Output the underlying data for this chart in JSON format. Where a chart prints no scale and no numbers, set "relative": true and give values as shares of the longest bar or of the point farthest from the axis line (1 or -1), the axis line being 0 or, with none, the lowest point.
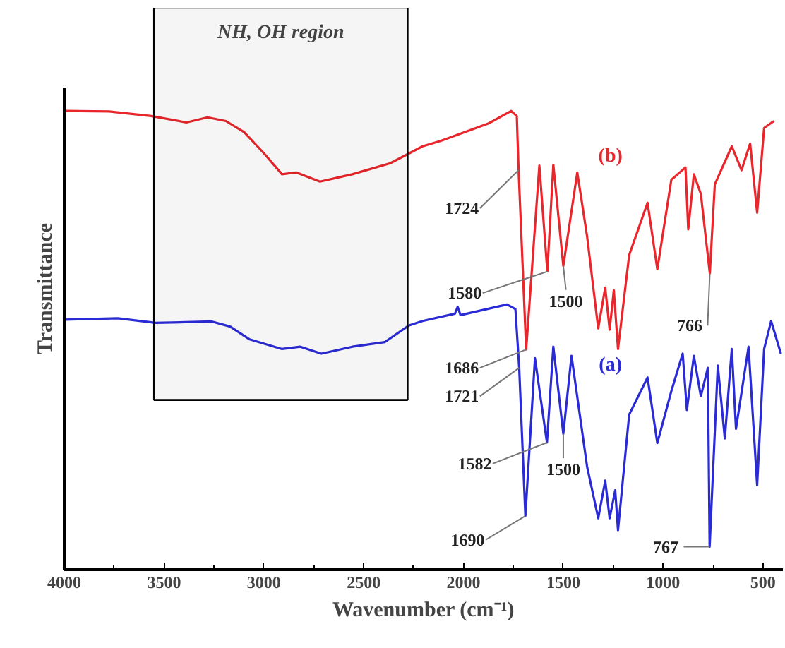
{
  "chart_data": {
    "type": "line",
    "relative": true,
    "xlabel": "Wavenumber (cm⁻¹)",
    "ylabel": "Transmittance",
    "xlim": [
      4000,
      400
    ],
    "xticks": [
      4000,
      {
        "value": 3750,
        "label": null
      },
      3500,
      {
        "value": 3250,
        "label": null
      },
      3000,
      {
        "value": 2750,
        "label": null
      },
      2500,
      {
        "value": 2250,
        "label": null
      },
      2000,
      {
        "value": 1750,
        "label": null
      },
      1500,
      {
        "value": 1250,
        "label": null
      },
      1000,
      {
        "value": 750,
        "label": null
      },
      500
    ],
    "series": [
      {
        "name": "(b)",
        "color": "#e8262b",
        "x": [
          4000,
          3775,
          3564,
          3388,
          3282,
          3190,
          3099,
          3000,
          2909,
          2838,
          2719,
          2557,
          2367,
          2205,
          2113,
          1874,
          1761,
          1733,
          1724,
          1686,
          1620,
          1580,
          1550,
          1500,
          1430,
          1381,
          1325,
          1290,
          1268,
          1247,
          1226,
          1170,
          1078,
          1029,
          959,
          888,
          874,
          846,
          811,
          766,
          741,
          656,
          607,
          564,
          529,
          494,
          445
        ],
        "values": [
          1.0,
          0.999,
          0.989,
          0.975,
          0.986,
          0.978,
          0.954,
          0.908,
          0.862,
          0.866,
          0.846,
          0.862,
          0.886,
          0.923,
          0.935,
          0.973,
          1.0,
          0.989,
          0.871,
          0.48,
          0.881,
          0.65,
          0.883,
          0.662,
          0.866,
          0.727,
          0.526,
          0.615,
          0.523,
          0.609,
          0.481,
          0.686,
          0.8,
          0.655,
          0.85,
          0.877,
          0.742,
          0.862,
          0.819,
          0.646,
          0.84,
          0.923,
          0.871,
          0.929,
          0.778,
          0.963,
          0.978
        ]
      },
      {
        "name": "(a)",
        "color": "#2b2bd6",
        "x": [
          4000,
          3732,
          3542,
          3261,
          3169,
          3071,
          2909,
          2817,
          2712,
          2557,
          2395,
          2275,
          2205,
          2043,
          2029,
          2015,
          1782,
          1740,
          1721,
          1690,
          1642,
          1582,
          1550,
          1500,
          1459,
          1381,
          1325,
          1290,
          1268,
          1240,
          1226,
          1170,
          1078,
          1029,
          959,
          902,
          881,
          846,
          811,
          776,
          767,
          726,
          691,
          656,
          635,
          572,
          529,
          494,
          459,
          410
        ],
        "values": [
          0.545,
          0.548,
          0.538,
          0.541,
          0.53,
          0.502,
          0.481,
          0.486,
          0.471,
          0.486,
          0.496,
          0.532,
          0.542,
          0.558,
          0.573,
          0.555,
          0.578,
          0.568,
          0.44,
          0.117,
          0.461,
          0.277,
          0.486,
          0.296,
          0.466,
          0.225,
          0.112,
          0.194,
          0.112,
          0.173,
          0.086,
          0.338,
          0.419,
          0.276,
          0.389,
          0.471,
          0.348,
          0.466,
          0.378,
          0.44,
          0.05,
          0.445,
          0.286,
          0.481,
          0.307,
          0.486,
          0.184,
          0.481,
          0.542,
          0.471
        ]
      }
    ],
    "bands": [
      {
        "axis": "x",
        "from": 3550,
        "to": 2280,
        "label": "NH, OH region",
        "color": "#000000"
      }
    ],
    "annotations": [
      {
        "text": "1724",
        "x": 1724,
        "y": 0.871
      },
      {
        "text": "1580",
        "x": 1580,
        "y": 0.65
      },
      {
        "text": "1500",
        "x": 1500,
        "y": 0.662
      },
      {
        "text": "766",
        "x": 766,
        "y": 0.646
      },
      {
        "text": "1686",
        "x": 1686,
        "y": 0.48
      },
      {
        "text": "1721",
        "x": 1721,
        "y": 0.44
      },
      {
        "text": "1582",
        "x": 1582,
        "y": 0.277
      },
      {
        "text": "1500",
        "x": 1500,
        "y": 0.296
      },
      {
        "text": "1690",
        "x": 1690,
        "y": 0.117
      },
      {
        "text": "767",
        "x": 767,
        "y": 0.05
      }
    ],
    "legend": false,
    "grid": false,
    "marker": "none",
    "line_style": "solid"
  }
}
